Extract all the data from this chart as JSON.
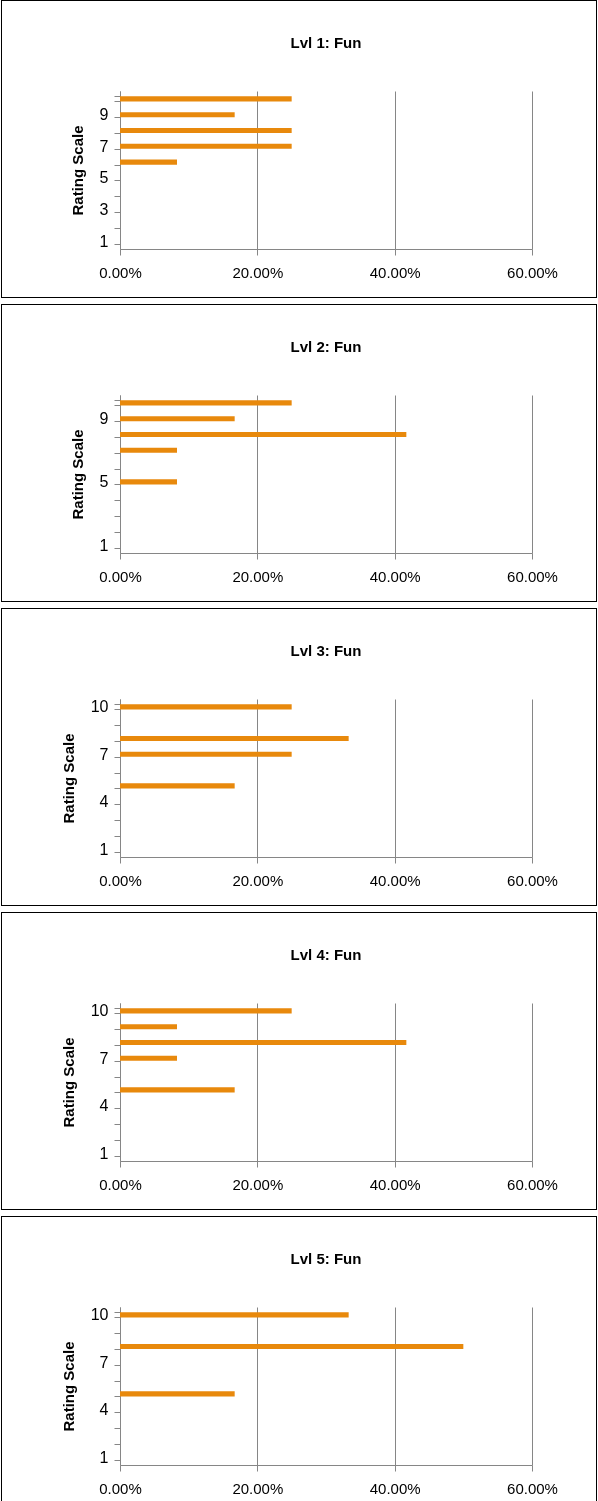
{
  "chart_data": [
    {
      "type": "bar",
      "orientation": "horizontal",
      "title": "Lvl 1: Fun",
      "ylabel": "Rating Scale",
      "categories": [
        null,
        "9",
        null,
        "7",
        null,
        "5",
        null,
        "3",
        null,
        "1"
      ],
      "values": [
        25,
        16.7,
        25,
        25,
        8.3,
        null,
        null,
        null,
        null,
        null
      ],
      "color": "#e8890c",
      "xlim": [
        0,
        60
      ],
      "xticks": [
        {
          "value": 0,
          "label": "0.00%"
        },
        {
          "value": 20,
          "label": "20.00%"
        },
        {
          "value": 40,
          "label": "40.00%"
        },
        {
          "value": 60,
          "label": "60.00%"
        }
      ],
      "grid": "x"
    },
    {
      "type": "bar",
      "orientation": "horizontal",
      "title": "Lvl 2: Fun",
      "ylabel": "Rating Scale",
      "categories": [
        null,
        "9",
        null,
        null,
        null,
        "5",
        null,
        null,
        null,
        "1"
      ],
      "values": [
        25,
        16.7,
        41.7,
        8.3,
        null,
        8.3,
        null,
        null,
        null,
        null
      ],
      "color": "#e8890c",
      "xlim": [
        0,
        60
      ],
      "xticks": [
        {
          "value": 0,
          "label": "0.00%"
        },
        {
          "value": 20,
          "label": "20.00%"
        },
        {
          "value": 40,
          "label": "40.00%"
        },
        {
          "value": 60,
          "label": "60.00%"
        }
      ],
      "grid": "x"
    },
    {
      "type": "bar",
      "orientation": "horizontal",
      "title": "Lvl 3: Fun",
      "ylabel": "Rating Scale",
      "categories": [
        "10",
        null,
        null,
        "7",
        null,
        null,
        "4",
        null,
        null,
        "1"
      ],
      "values": [
        25,
        null,
        33.3,
        25,
        null,
        16.7,
        null,
        null,
        null,
        null
      ],
      "color": "#e8890c",
      "xlim": [
        0,
        60
      ],
      "xticks": [
        {
          "value": 0,
          "label": "0.00%"
        },
        {
          "value": 20,
          "label": "20.00%"
        },
        {
          "value": 40,
          "label": "40.00%"
        },
        {
          "value": 60,
          "label": "60.00%"
        }
      ],
      "grid": "x"
    },
    {
      "type": "bar",
      "orientation": "horizontal",
      "title": "Lvl 4: Fun",
      "ylabel": "Rating Scale",
      "categories": [
        "10",
        null,
        null,
        "7",
        null,
        null,
        "4",
        null,
        null,
        "1"
      ],
      "values": [
        25,
        8.3,
        41.7,
        8.3,
        null,
        16.7,
        null,
        null,
        null,
        null
      ],
      "color": "#e8890c",
      "xlim": [
        0,
        60
      ],
      "xticks": [
        {
          "value": 0,
          "label": "0.00%"
        },
        {
          "value": 20,
          "label": "20.00%"
        },
        {
          "value": 40,
          "label": "40.00%"
        },
        {
          "value": 60,
          "label": "60.00%"
        }
      ],
      "grid": "x"
    },
    {
      "type": "bar",
      "orientation": "horizontal",
      "title": "Lvl 5: Fun",
      "ylabel": "Rating Scale",
      "categories": [
        "10",
        null,
        null,
        "7",
        null,
        null,
        "4",
        null,
        null,
        "1"
      ],
      "values": [
        33.3,
        null,
        50,
        null,
        null,
        16.7,
        null,
        null,
        null,
        null
      ],
      "color": "#e8890c",
      "xlim": [
        0,
        60
      ],
      "xticks": [
        {
          "value": 0,
          "label": "0.00%"
        },
        {
          "value": 20,
          "label": "20.00%"
        },
        {
          "value": 40,
          "label": "40.00%"
        },
        {
          "value": 60,
          "label": "60.00%"
        }
      ],
      "grid": "x"
    }
  ]
}
